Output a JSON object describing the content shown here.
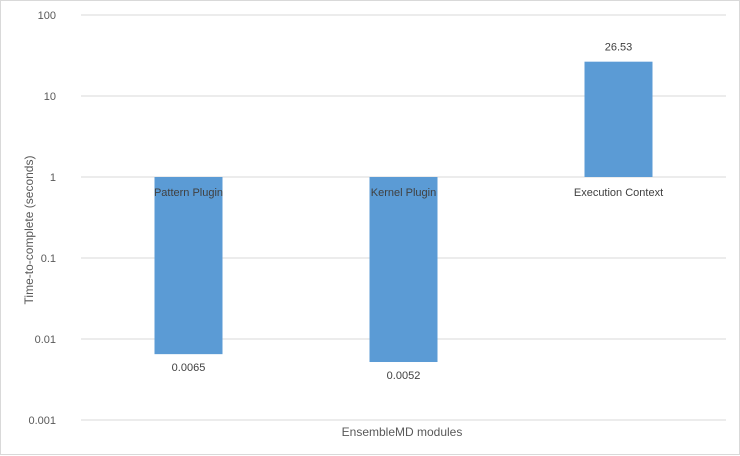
{
  "chart_data": {
    "type": "bar",
    "title": "",
    "xlabel": "EnsembleMD modules",
    "ylabel": "Time-to-complete  (seconds)",
    "yscale": "log",
    "ylim": [
      0.001,
      100
    ],
    "yticks": [
      100,
      10,
      1,
      0.1,
      0.01,
      0.001
    ],
    "ytick_labels": [
      "100",
      "10",
      "1",
      "0.1",
      "0.01",
      "0.001"
    ],
    "grid": true,
    "legend": "none",
    "categories": [
      "Pattern Plugin",
      "Kernel Plugin",
      "Execution Context"
    ],
    "values": [
      0.0065,
      0.0052,
      26.53
    ],
    "data_labels": [
      "0.0065",
      "0.0052",
      "26.53"
    ],
    "colors": {
      "bar": "#5b9bd5",
      "grid": "#d9d9d9",
      "text": "#595959"
    }
  }
}
